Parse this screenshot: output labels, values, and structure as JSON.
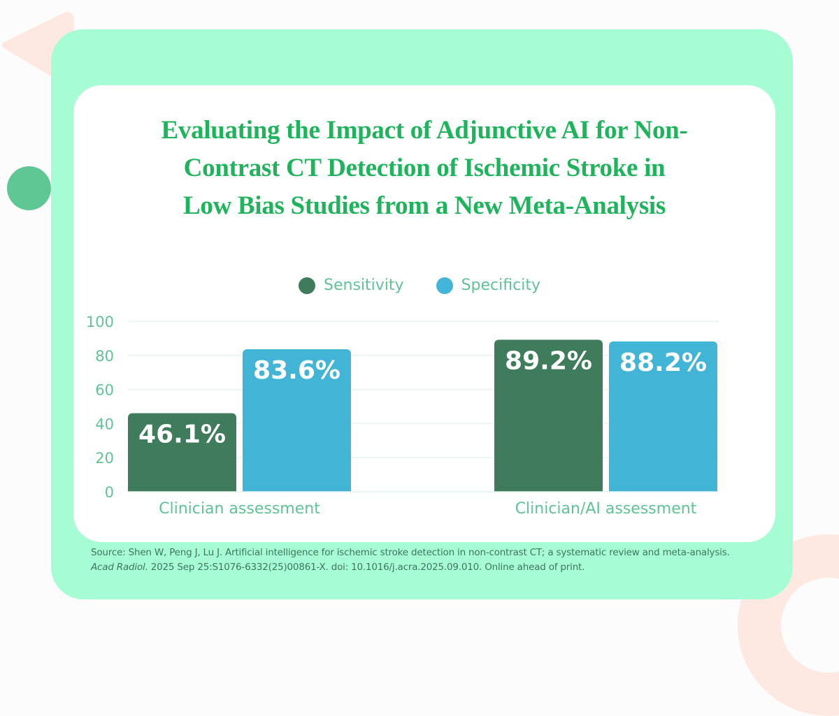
{
  "colors": {
    "title": "#1fb45c",
    "axis_text": "#5fc394",
    "sensitivity": "#3e7c5c",
    "specificity": "#42b5d6",
    "gridline": "#e4f5ef",
    "outer_panel": "#a6fdd4",
    "inner_card": "#ffffff",
    "decor_peach": "#fde9e2",
    "decor_green_dot": "#5fc794",
    "source_text": "#3f7560"
  },
  "title_lines": [
    "Evaluating the Impact of Adjunctive AI for Non-",
    "Contrast CT Detection of Ischemic Stroke in",
    "Low Bias Studies from a New Meta-Analysis"
  ],
  "source": {
    "prefix": "Source: Shen W, Peng J, Lu J. Artificial intelligence for ischemic stroke detection in non-contrast CT; a systematic review and meta-analysis. ",
    "journal": "Acad Radiol.",
    "suffix": " 2025 Sep 25:S1076-6332(25)00861-X. doi: 10.1016/j.acra.2025.09.010. Online ahead of print."
  },
  "chart_data": {
    "type": "bar",
    "title": "Evaluating the Impact of Adjunctive AI for Non-Contrast CT Detection of Ischemic Stroke in Low Bias Studies from a New Meta-Analysis",
    "categories": [
      "Clinician assessment",
      "Clinician/AI assessment"
    ],
    "series": [
      {
        "name": "Sensitivity",
        "values": [
          46.1,
          89.2
        ],
        "labels": [
          "46.1%",
          "89.2%"
        ],
        "color": "#3e7c5c"
      },
      {
        "name": "Specificity",
        "values": [
          83.6,
          88.2
        ],
        "labels": [
          "83.6%",
          "88.2%"
        ],
        "color": "#42b5d6"
      }
    ],
    "xlabel": "",
    "ylabel": "",
    "ylim": [
      0,
      100
    ],
    "yticks": [
      0,
      20,
      40,
      60,
      80,
      100
    ],
    "grid": true,
    "legend_position": "top-center"
  }
}
